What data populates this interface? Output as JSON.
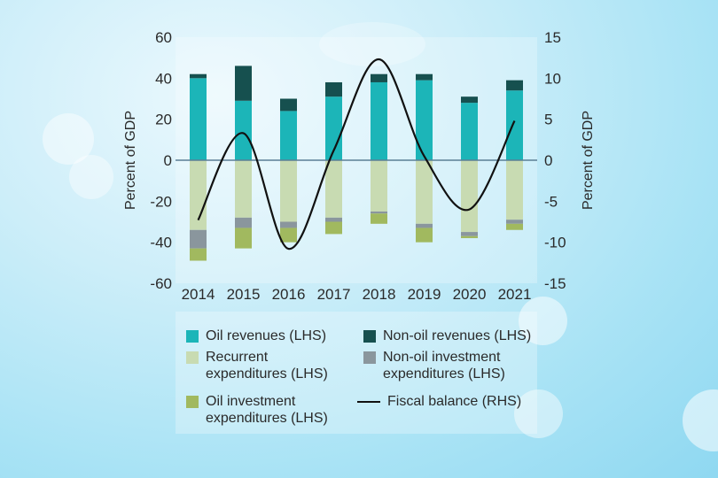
{
  "colors": {
    "oil_revenues": "#1cb5b8",
    "non_oil_revenues": "#16504f",
    "recurrent_expenditures": "#c8dbb2",
    "non_oil_investment": "#8a969d",
    "oil_investment": "#a1b95f",
    "fiscal_balance": "#111111",
    "zero_line": "#5a7f95"
  },
  "chart_data": {
    "type": "bar",
    "title": "",
    "xlabel": "",
    "ylabel": "Percent of GDP",
    "y2label": "Percent of GDP",
    "ylim": [
      -60,
      60
    ],
    "y2lim": [
      -15,
      15
    ],
    "yticks": [
      "60",
      "40",
      "20",
      "0",
      "-20",
      "-40",
      "-60"
    ],
    "y2ticks": [
      "15",
      "10",
      "5",
      "0",
      "-5",
      "-10",
      "-15"
    ],
    "categories": [
      "2014",
      "2015",
      "2016",
      "2017",
      "2018",
      "2019",
      "2020",
      "2021"
    ],
    "series": [
      {
        "name": "Oil revenues (LHS)",
        "key": "oil_revenues",
        "axis": "left",
        "values": [
          40,
          29,
          24,
          31,
          38,
          39,
          28,
          34
        ]
      },
      {
        "name": "Non-oil revenues (LHS)",
        "key": "non_oil_revenues",
        "axis": "left",
        "values": [
          2,
          17,
          6,
          7,
          4,
          3,
          3,
          5
        ]
      },
      {
        "name": "Recurrent expenditures (LHS)",
        "key": "recurrent_expenditures",
        "axis": "left",
        "values": [
          -34,
          -28,
          -30,
          -28,
          -25,
          -31,
          -35,
          -29
        ]
      },
      {
        "name": "Non-oil investment expenditures (LHS)",
        "key": "non_oil_investment",
        "axis": "left",
        "values": [
          -9,
          -5,
          -3,
          -2,
          -1,
          -2,
          -2,
          -2
        ]
      },
      {
        "name": "Oil investment expenditures (LHS)",
        "key": "oil_investment",
        "axis": "left",
        "values": [
          -6,
          -10,
          -7,
          -6,
          -5,
          -7,
          -1,
          -3
        ]
      },
      {
        "name": "Fiscal balance (RHS)",
        "key": "fiscal_balance",
        "axis": "right",
        "type": "line",
        "values": [
          -7.3,
          3.3,
          -10.8,
          1.2,
          12.3,
          0.5,
          -6.0,
          4.8
        ]
      }
    ]
  },
  "legend": [
    {
      "label_lines": [
        "Oil revenues (LHS)"
      ],
      "key": "oil_revenues",
      "kind": "box"
    },
    {
      "label_lines": [
        "Non-oil revenues (LHS)"
      ],
      "key": "non_oil_revenues",
      "kind": "box"
    },
    {
      "label_lines": [
        "Recurrent",
        "expenditures (LHS)"
      ],
      "key": "recurrent_expenditures",
      "kind": "box"
    },
    {
      "label_lines": [
        "Non-oil investment",
        "expenditures (LHS)"
      ],
      "key": "non_oil_investment",
      "kind": "box"
    },
    {
      "label_lines": [
        "Oil investment",
        "expenditures (LHS)"
      ],
      "key": "oil_investment",
      "kind": "box"
    },
    {
      "label_lines": [
        "Fiscal balance (RHS)"
      ],
      "key": "fiscal_balance",
      "kind": "line"
    }
  ]
}
